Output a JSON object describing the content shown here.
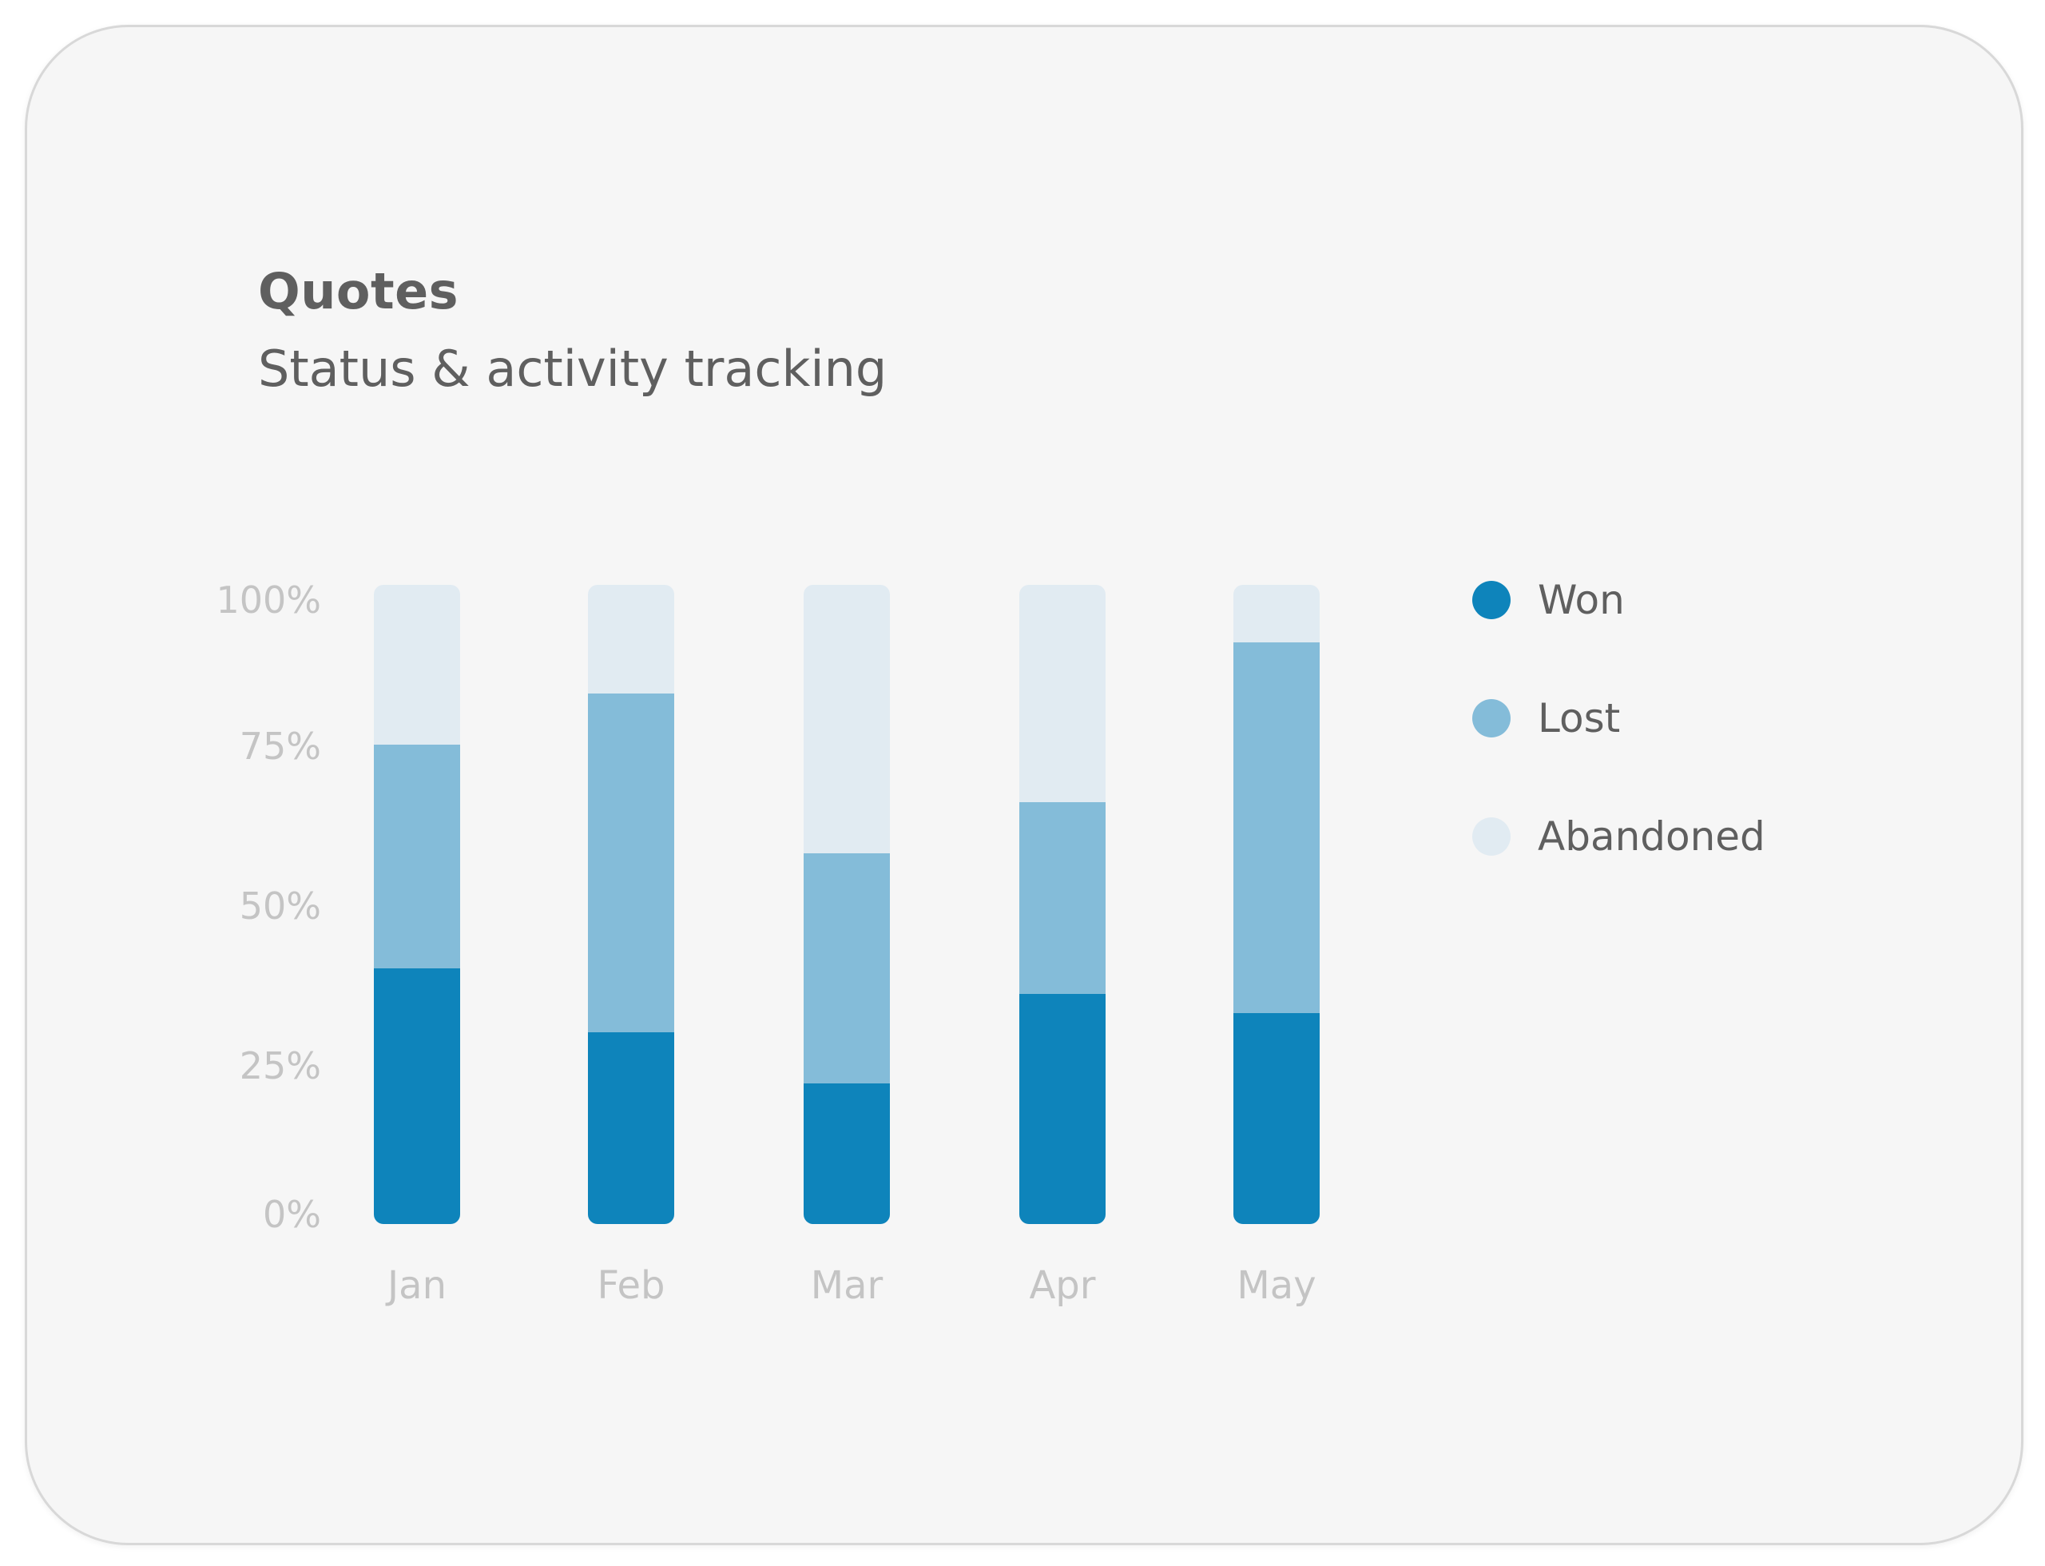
{
  "card": {
    "title": "Quotes",
    "subtitle": "Status & activity tracking"
  },
  "colors": {
    "won": "#0e84bb",
    "lost": "#84bcd9",
    "abandoned": "#e1ebf2",
    "tick_text": "#c4c4c4",
    "heading_text": "#5f5f5f"
  },
  "chart_data": {
    "type": "bar",
    "stacked": true,
    "categories": [
      "Jan",
      "Feb",
      "Mar",
      "Apr",
      "May"
    ],
    "series": [
      {
        "name": "Won",
        "color": "#0e84bb",
        "values": [
          40,
          30,
          22,
          36,
          33
        ]
      },
      {
        "name": "Lost",
        "color": "#84bcd9",
        "values": [
          35,
          53,
          36,
          30,
          58
        ]
      },
      {
        "name": "Abandoned",
        "color": "#e1ebf2",
        "values": [
          25,
          17,
          42,
          34,
          9
        ]
      }
    ],
    "ylim": [
      0,
      100
    ],
    "yticks": [
      "0%",
      "25%",
      "50%",
      "75%",
      "100%"
    ],
    "ytick_values": [
      0,
      25,
      50,
      75,
      100
    ],
    "grid": false,
    "legend_position": "right"
  }
}
